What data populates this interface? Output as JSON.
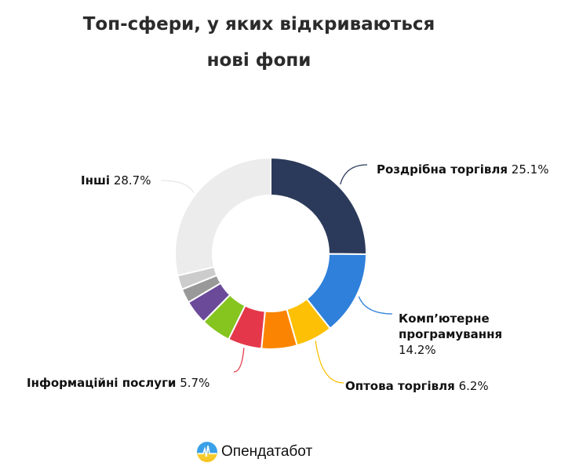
{
  "chart_data": {
    "type": "pie",
    "subtype": "donut",
    "title_line1": "Топ-сфери, у яких відкриваються",
    "title_line2": "нові фопи",
    "unit": "%",
    "slices": [
      {
        "name": "Роздрібна торгівля",
        "value": 25.1,
        "value_label": "25.1%",
        "color": "#2b3a5a",
        "labeled": true
      },
      {
        "name": "Комп’ютерне програмування",
        "value": 14.2,
        "value_label": "14.2%",
        "color": "#2e80db",
        "labeled": true
      },
      {
        "name": "Оптова торгівля",
        "value": 6.2,
        "value_label": "6.2%",
        "color": "#fdc004",
        "labeled": true
      },
      {
        "name": "",
        "value": 6.0,
        "color": "#fb8503",
        "labeled": false
      },
      {
        "name": "Інформаційні послуги",
        "value": 5.7,
        "value_label": "5.7%",
        "color": "#e4384a",
        "labeled": true
      },
      {
        "name": "",
        "value": 5.1,
        "color": "#86c420",
        "labeled": false
      },
      {
        "name": "",
        "value": 4.1,
        "color": "#6b4a9a",
        "labeled": false
      },
      {
        "name": "",
        "value": 2.4,
        "color": "#999999",
        "labeled": false
      },
      {
        "name": "",
        "value": 2.4,
        "color": "#cccccc",
        "labeled": false
      },
      {
        "name": "Інші",
        "value": 28.7,
        "value_label": "28.7%",
        "color": "#ececec",
        "labeled": true
      }
    ]
  },
  "logo": {
    "text": "Опендатабот"
  }
}
